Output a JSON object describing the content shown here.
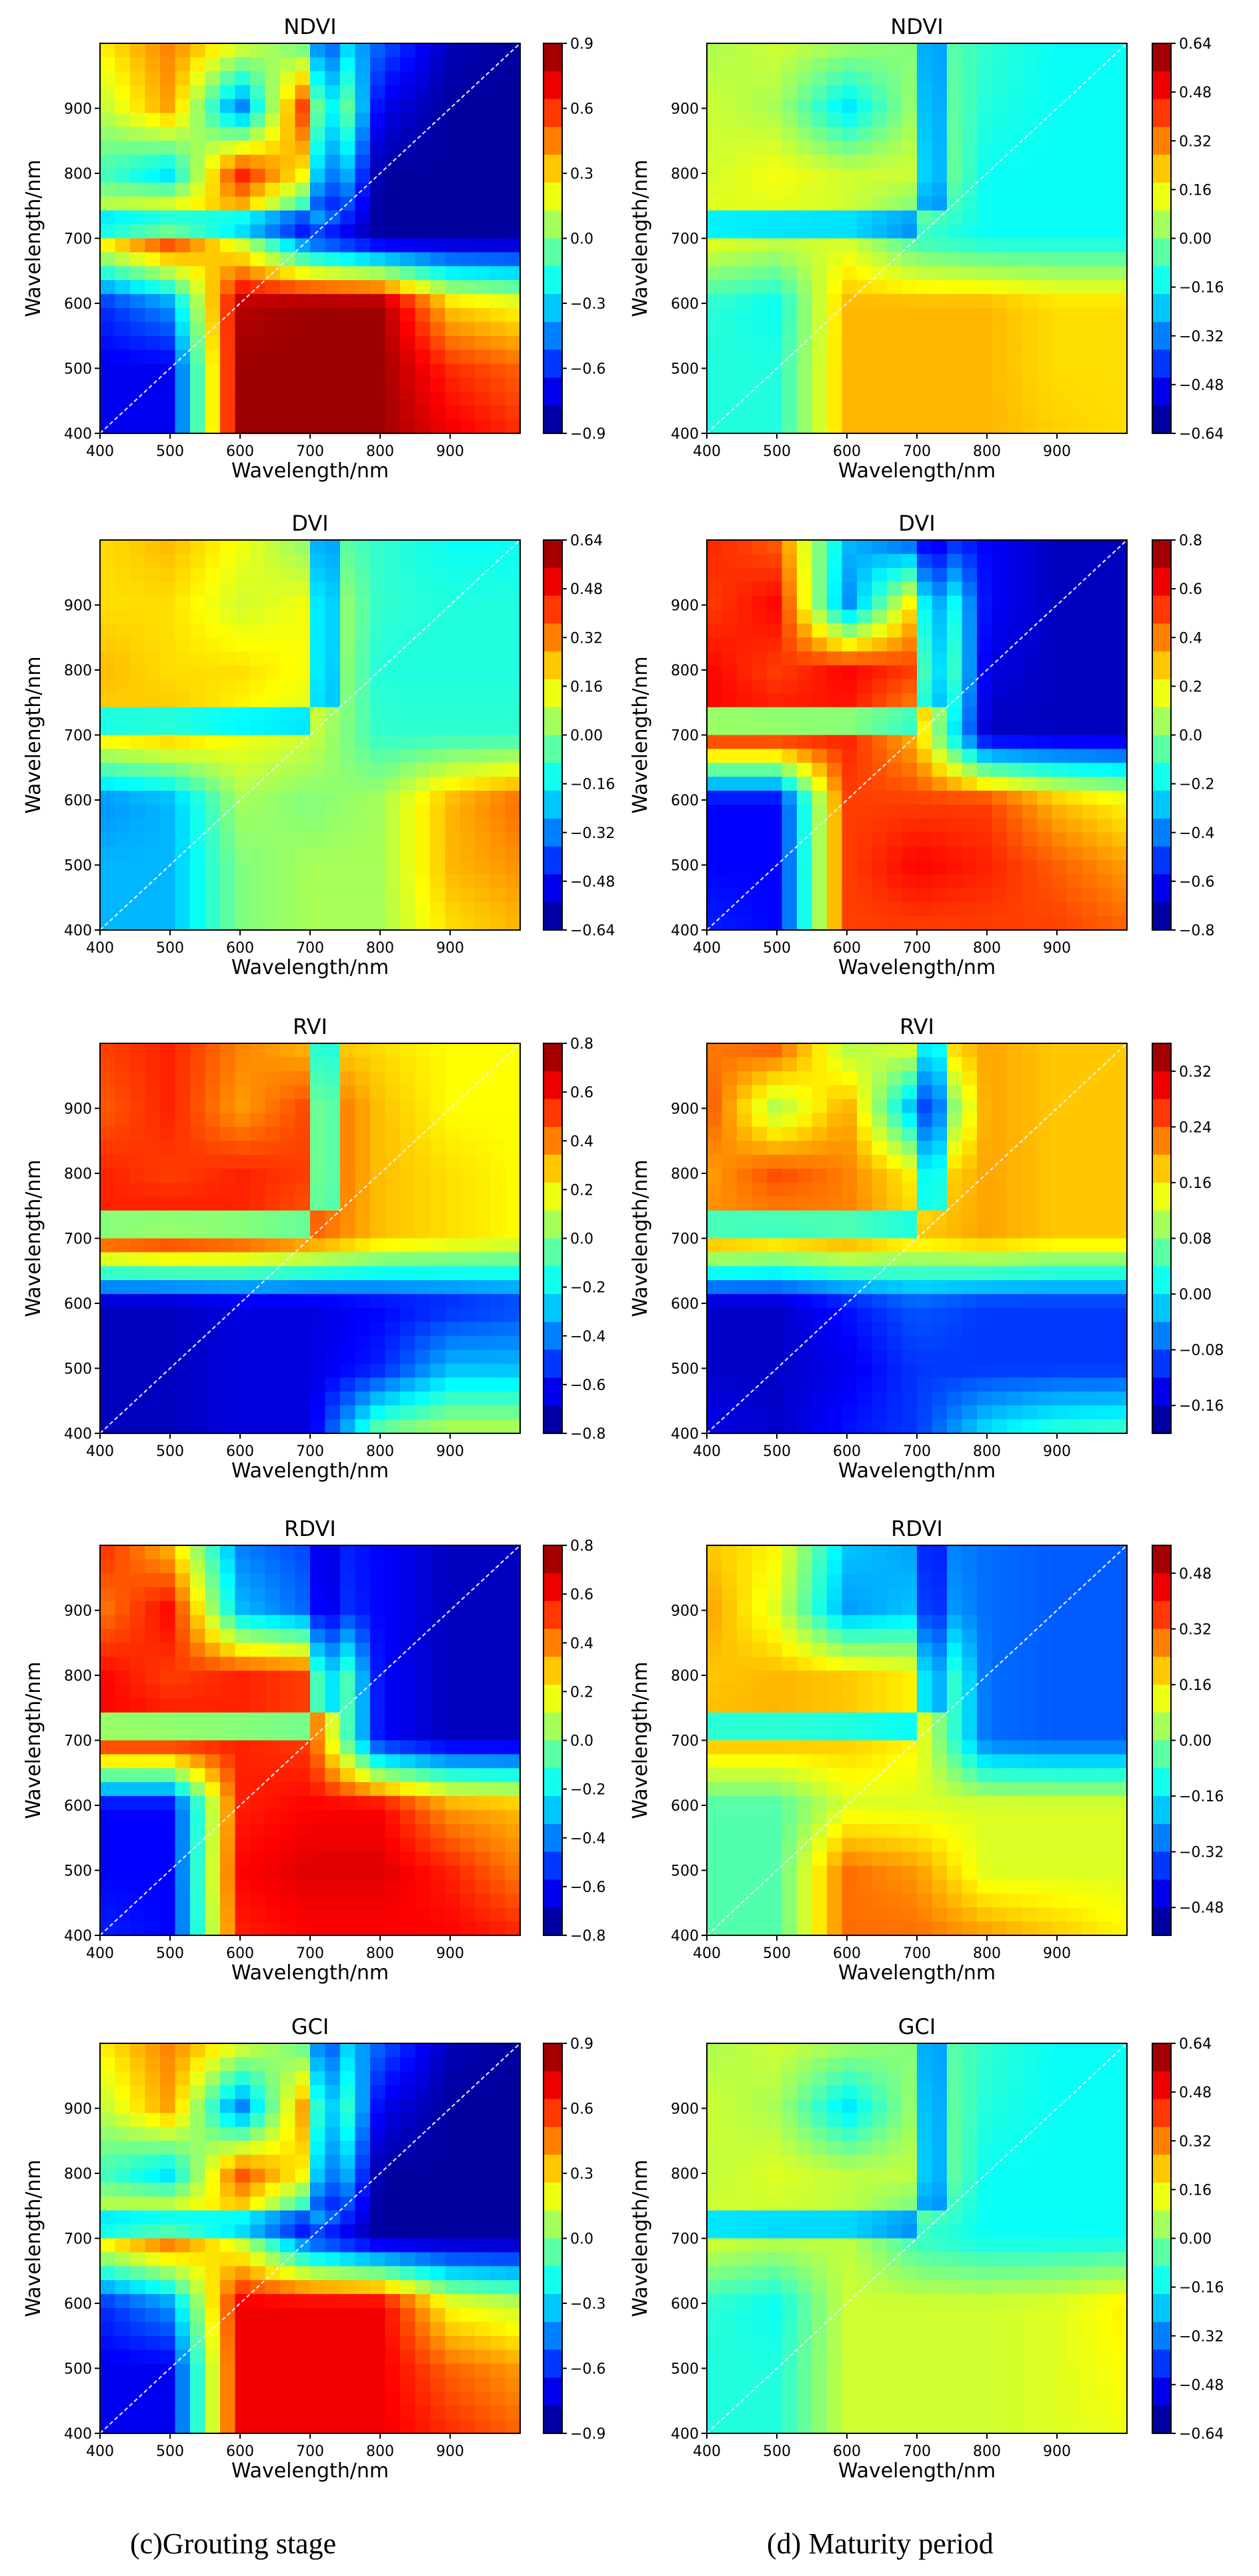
{
  "figure": {
    "captions": [
      "(c)Grouting stage",
      "(d) Maturity period"
    ]
  },
  "chart_data": [
    {
      "type": "heatmap",
      "title": "NDVI",
      "xlabel": "Wavelength/nm",
      "ylabel": "Wavelength/nm",
      "xlim": [
        400,
        1000
      ],
      "ylim": [
        400,
        1000
      ],
      "x_ticks": [
        "400",
        "500",
        "600",
        "700",
        "800",
        "900"
      ],
      "y_ticks": [
        "400",
        "500",
        "600",
        "700",
        "800",
        "900"
      ],
      "colorbar": {
        "min": -0.9,
        "max": 0.9,
        "ticks": [
          "0.9",
          "0.6",
          "0.3",
          "0.0",
          "−0.3",
          "−0.6",
          "−0.9"
        ]
      },
      "field": {
        "low_band": 0.55,
        "high_band": 0.85,
        "values": [
          [
            0.25,
            0.45,
            0.2,
            -0.1,
            -0.5,
            -0.8,
            -0.85
          ],
          [
            0.1,
            0.4,
            -0.5,
            0.7,
            -0.7,
            -0.85,
            -0.85
          ],
          [
            -0.1,
            -0.3,
            0.65,
            0.2,
            -0.85,
            -0.85,
            -0.85
          ],
          [
            0.3,
            0.65,
            0.1,
            -0.6,
            -0.85,
            -0.85,
            -0.85
          ],
          [
            -0.6,
            -0.4,
            0.8,
            0.85,
            0.85,
            0.3,
            0.2
          ],
          [
            -0.7,
            -0.7,
            0.85,
            0.85,
            0.85,
            0.6,
            0.5
          ],
          [
            -0.7,
            -0.7,
            0.85,
            0.85,
            0.85,
            0.7,
            0.6
          ]
        ]
      }
    },
    {
      "type": "heatmap",
      "title": "NDVI",
      "xlabel": "Wavelength/nm",
      "ylabel": "Wavelength/nm",
      "xlim": [
        400,
        1000
      ],
      "ylim": [
        400,
        1000
      ],
      "x_ticks": [
        "400",
        "500",
        "600",
        "700",
        "800",
        "900"
      ],
      "y_ticks": [
        "400",
        "500",
        "600",
        "700",
        "800",
        "900"
      ],
      "colorbar": {
        "min": -0.64,
        "max": 0.64,
        "ticks": [
          "0.64",
          "0.48",
          "0.32",
          "0.16",
          "0.00",
          "−0.16",
          "−0.32",
          "−0.48",
          "−0.64"
        ]
      },
      "field": {
        "low_band": 0.55,
        "high_band": 0.8,
        "values": [
          [
            0.05,
            0.1,
            0.05,
            0.0,
            -0.1,
            -0.15,
            -0.15
          ],
          [
            0.1,
            0.05,
            -0.2,
            0.05,
            -0.12,
            -0.15,
            -0.15
          ],
          [
            0.1,
            0.15,
            0.1,
            0.1,
            -0.15,
            -0.15,
            -0.15
          ],
          [
            0.15,
            0.1,
            0.1,
            -0.1,
            -0.15,
            -0.15,
            -0.15
          ],
          [
            -0.1,
            -0.15,
            0.25,
            0.25,
            0.25,
            0.2,
            0.2
          ],
          [
            -0.12,
            -0.12,
            0.25,
            0.25,
            0.25,
            0.2,
            0.2
          ],
          [
            -0.12,
            -0.12,
            0.25,
            0.25,
            0.25,
            0.22,
            0.2
          ]
        ]
      }
    },
    {
      "type": "heatmap",
      "title": "DVI",
      "xlabel": "Wavelength/nm",
      "ylabel": "Wavelength/nm",
      "xlim": [
        400,
        1000
      ],
      "ylim": [
        400,
        1000
      ],
      "x_ticks": [
        "400",
        "500",
        "600",
        "700",
        "800",
        "900"
      ],
      "y_ticks": [
        "400",
        "500",
        "600",
        "700",
        "800",
        "900"
      ],
      "colorbar": {
        "min": -0.64,
        "max": 0.64,
        "ticks": [
          "0.64",
          "0.48",
          "0.32",
          "0.16",
          "0.00",
          "−0.16",
          "−0.32",
          "−0.48",
          "−0.64"
        ]
      },
      "field": {
        "low_band": 0.55,
        "high_band": 0.85,
        "values": [
          [
            0.2,
            0.25,
            0.15,
            0.0,
            -0.1,
            -0.15,
            -0.15
          ],
          [
            0.2,
            0.2,
            0.1,
            0.15,
            -0.1,
            -0.12,
            -0.12
          ],
          [
            0.25,
            0.2,
            0.2,
            0.15,
            -0.12,
            -0.12,
            -0.12
          ],
          [
            0.2,
            0.25,
            0.15,
            0.1,
            -0.1,
            -0.1,
            -0.1
          ],
          [
            -0.3,
            -0.25,
            0.05,
            0.0,
            0.05,
            0.25,
            0.35
          ],
          [
            -0.25,
            -0.25,
            0.0,
            0.05,
            0.05,
            0.25,
            0.3
          ],
          [
            -0.25,
            -0.25,
            0.0,
            0.05,
            0.05,
            0.2,
            0.25
          ]
        ]
      }
    },
    {
      "type": "heatmap",
      "title": "DVI",
      "xlabel": "Wavelength/nm",
      "ylabel": "Wavelength/nm",
      "xlim": [
        400,
        1000
      ],
      "ylim": [
        400,
        1000
      ],
      "x_ticks": [
        "400",
        "500",
        "600",
        "700",
        "800",
        "900"
      ],
      "y_ticks": [
        "400",
        "500",
        "600",
        "700",
        "800",
        "900"
      ],
      "colorbar": {
        "min": -0.8,
        "max": 0.8,
        "ticks": [
          "0.8",
          "0.6",
          "0.4",
          "0.2",
          "0.0",
          "−0.2",
          "−0.4",
          "−0.6",
          "−0.8"
        ]
      },
      "field": {
        "low_band": 0.55,
        "high_band": 0.8,
        "values": [
          [
            0.55,
            0.45,
            -0.3,
            -0.5,
            -0.6,
            -0.7,
            -0.7
          ],
          [
            0.5,
            0.6,
            -0.4,
            0.3,
            -0.6,
            -0.7,
            -0.7
          ],
          [
            0.6,
            0.5,
            0.6,
            0.5,
            -0.65,
            -0.7,
            -0.7
          ],
          [
            0.6,
            0.6,
            0.55,
            0.3,
            -0.7,
            -0.7,
            -0.7
          ],
          [
            -0.6,
            -0.6,
            0.5,
            0.5,
            0.5,
            0.3,
            0.2
          ],
          [
            -0.6,
            -0.6,
            0.5,
            0.6,
            0.55,
            0.45,
            0.35
          ],
          [
            -0.55,
            -0.6,
            0.5,
            0.5,
            0.5,
            0.5,
            0.45
          ]
        ]
      }
    },
    {
      "type": "heatmap",
      "title": "RVI",
      "xlabel": "Wavelength/nm",
      "ylabel": "Wavelength/nm",
      "xlim": [
        400,
        1000
      ],
      "ylim": [
        400,
        1000
      ],
      "x_ticks": [
        "400",
        "500",
        "600",
        "700",
        "800",
        "900"
      ],
      "y_ticks": [
        "400",
        "500",
        "600",
        "700",
        "800",
        "900"
      ],
      "colorbar": {
        "min": -0.8,
        "max": 0.8,
        "ticks": [
          "0.8",
          "0.6",
          "0.4",
          "0.2",
          "0.0",
          "−0.2",
          "−0.4",
          "−0.6",
          "−0.8"
        ]
      },
      "field": {
        "low_band": 0.55,
        "high_band": 1.05,
        "values": [
          [
            0.5,
            0.55,
            0.4,
            0.3,
            0.25,
            0.2,
            0.2
          ],
          [
            0.45,
            0.55,
            0.35,
            0.5,
            0.3,
            0.2,
            0.2
          ],
          [
            0.55,
            0.5,
            0.55,
            0.5,
            0.3,
            0.25,
            0.2
          ],
          [
            0.55,
            0.6,
            0.55,
            0.45,
            0.3,
            0.25,
            0.2
          ],
          [
            -0.7,
            -0.7,
            -0.65,
            -0.65,
            -0.6,
            -0.55,
            -0.5
          ],
          [
            -0.7,
            -0.7,
            -0.65,
            -0.65,
            -0.55,
            -0.3,
            -0.3
          ],
          [
            -0.7,
            -0.7,
            -0.65,
            -0.65,
            0.0,
            0.1,
            0.1
          ]
        ]
      }
    },
    {
      "type": "heatmap",
      "title": "RVI",
      "xlabel": "Wavelength/nm",
      "ylabel": "Wavelength/nm",
      "xlim": [
        400,
        1000
      ],
      "ylim": [
        400,
        1000
      ],
      "x_ticks": [
        "400",
        "500",
        "600",
        "700",
        "800",
        "900"
      ],
      "y_ticks": [
        "400",
        "500",
        "600",
        "700",
        "800",
        "900"
      ],
      "colorbar": {
        "min": -0.2,
        "max": 0.36,
        "ticks": [
          "0.32",
          "0.24",
          "0.16",
          "0.08",
          "0.00",
          "−0.08",
          "−0.16"
        ]
      },
      "field": {
        "low_band": 0.55,
        "high_band": 1.05,
        "values": [
          [
            0.22,
            0.25,
            0.1,
            0.15,
            0.2,
            0.18,
            0.18
          ],
          [
            0.25,
            0.1,
            0.2,
            -0.05,
            0.2,
            0.18,
            0.18
          ],
          [
            0.2,
            0.25,
            0.22,
            0.15,
            0.2,
            0.18,
            0.18
          ],
          [
            0.22,
            0.2,
            0.22,
            0.18,
            0.2,
            0.18,
            0.18
          ],
          [
            -0.16,
            -0.16,
            -0.12,
            -0.08,
            -0.1,
            -0.1,
            -0.1
          ],
          [
            -0.16,
            -0.16,
            -0.14,
            -0.1,
            -0.1,
            -0.1,
            -0.1
          ],
          [
            -0.14,
            -0.16,
            -0.12,
            -0.1,
            0.0,
            0.04,
            0.05
          ]
        ]
      }
    },
    {
      "type": "heatmap",
      "title": "RDVI",
      "xlabel": "Wavelength/nm",
      "ylabel": "Wavelength/nm",
      "xlim": [
        400,
        1000
      ],
      "ylim": [
        400,
        1000
      ],
      "x_ticks": [
        "400",
        "500",
        "600",
        "700",
        "800",
        "900"
      ],
      "y_ticks": [
        "400",
        "500",
        "600",
        "700",
        "800",
        "900"
      ],
      "colorbar": {
        "min": -0.8,
        "max": 0.8,
        "ticks": [
          "0.8",
          "0.6",
          "0.4",
          "0.2",
          "0.0",
          "−0.2",
          "−0.4",
          "−0.6",
          "−0.8"
        ]
      },
      "field": {
        "low_band": 0.55,
        "high_band": 0.8,
        "values": [
          [
            0.55,
            0.3,
            -0.4,
            -0.5,
            -0.6,
            -0.7,
            -0.7
          ],
          [
            0.4,
            0.6,
            -0.3,
            -0.45,
            -0.6,
            -0.7,
            -0.7
          ],
          [
            0.6,
            0.5,
            0.55,
            0.5,
            -0.6,
            -0.7,
            -0.7
          ],
          [
            0.6,
            0.6,
            0.55,
            0.5,
            -0.6,
            -0.7,
            -0.7
          ],
          [
            -0.6,
            -0.6,
            0.55,
            0.6,
            0.6,
            0.35,
            0.3
          ],
          [
            -0.6,
            -0.6,
            0.6,
            0.65,
            0.65,
            0.55,
            0.4
          ],
          [
            -0.55,
            -0.6,
            0.55,
            0.6,
            0.6,
            0.6,
            0.55
          ]
        ]
      }
    },
    {
      "type": "heatmap",
      "title": "RDVI",
      "xlabel": "Wavelength/nm",
      "ylabel": "Wavelength/nm",
      "xlim": [
        400,
        1000
      ],
      "ylim": [
        400,
        1000
      ],
      "x_ticks": [
        "400",
        "500",
        "600",
        "700",
        "800",
        "900"
      ],
      "y_ticks": [
        "400",
        "500",
        "600",
        "700",
        "800",
        "900"
      ],
      "colorbar": {
        "min": -0.56,
        "max": 0.56,
        "ticks": [
          "0.48",
          "0.32",
          "0.16",
          "0.00",
          "−0.16",
          "−0.32",
          "−0.48"
        ]
      },
      "field": {
        "low_band": 0.55,
        "high_band": 0.8,
        "values": [
          [
            0.2,
            0.15,
            -0.2,
            -0.25,
            -0.3,
            -0.32,
            -0.32
          ],
          [
            0.25,
            0.1,
            -0.25,
            -0.2,
            -0.3,
            -0.32,
            -0.32
          ],
          [
            0.2,
            0.22,
            0.2,
            0.15,
            -0.3,
            -0.32,
            -0.32
          ],
          [
            0.22,
            0.22,
            0.2,
            0.15,
            -0.3,
            -0.32,
            -0.32
          ],
          [
            -0.05,
            -0.05,
            0.1,
            0.1,
            0.1,
            0.1,
            0.1
          ],
          [
            -0.05,
            -0.05,
            0.3,
            0.25,
            0.1,
            0.1,
            0.1
          ],
          [
            -0.05,
            -0.05,
            0.3,
            0.3,
            0.25,
            0.2,
            0.15
          ]
        ]
      }
    },
    {
      "type": "heatmap",
      "title": "GCI",
      "xlabel": "Wavelength/nm",
      "ylabel": "Wavelength/nm",
      "xlim": [
        400,
        1000
      ],
      "ylim": [
        400,
        1000
      ],
      "x_ticks": [
        "400",
        "500",
        "600",
        "700",
        "800",
        "900"
      ],
      "y_ticks": [
        "400",
        "500",
        "600",
        "700",
        "800",
        "900"
      ],
      "colorbar": {
        "min": -0.9,
        "max": 0.9,
        "ticks": [
          "0.9",
          "0.6",
          "0.3",
          "0.0",
          "−0.3",
          "−0.6",
          "−0.9"
        ]
      },
      "field": {
        "low_band": 0.55,
        "high_band": 0.85,
        "values": [
          [
            0.25,
            0.45,
            0.2,
            -0.1,
            -0.5,
            -0.8,
            -0.85
          ],
          [
            0.1,
            0.4,
            -0.5,
            0.5,
            -0.7,
            -0.85,
            -0.85
          ],
          [
            -0.1,
            -0.3,
            0.55,
            0.2,
            -0.85,
            -0.85,
            -0.85
          ],
          [
            0.3,
            0.55,
            0.1,
            -0.6,
            -0.85,
            -0.85,
            -0.85
          ],
          [
            -0.6,
            -0.4,
            0.7,
            0.7,
            0.7,
            0.2,
            0.1
          ],
          [
            -0.7,
            -0.7,
            0.7,
            0.7,
            0.7,
            0.5,
            0.4
          ],
          [
            -0.7,
            -0.7,
            0.7,
            0.7,
            0.7,
            0.6,
            0.5
          ]
        ]
      }
    },
    {
      "type": "heatmap",
      "title": "GCI",
      "xlabel": "Wavelength/nm",
      "ylabel": "Wavelength/nm",
      "xlim": [
        400,
        1000
      ],
      "ylim": [
        400,
        1000
      ],
      "x_ticks": [
        "400",
        "500",
        "600",
        "700",
        "800",
        "900"
      ],
      "y_ticks": [
        "400",
        "500",
        "600",
        "700",
        "800",
        "900"
      ],
      "colorbar": {
        "min": -0.64,
        "max": 0.64,
        "ticks": [
          "0.64",
          "0.48",
          "0.32",
          "0.16",
          "0.00",
          "−0.16",
          "−0.32",
          "−0.48",
          "−0.64"
        ]
      },
      "field": {
        "low_band": 0.55,
        "high_band": 0.8,
        "values": [
          [
            0.05,
            0.1,
            0.05,
            0.0,
            -0.1,
            -0.15,
            -0.15
          ],
          [
            0.1,
            0.05,
            -0.2,
            0.05,
            -0.12,
            -0.15,
            -0.15
          ],
          [
            0.08,
            0.12,
            0.08,
            0.08,
            -0.15,
            -0.15,
            -0.15
          ],
          [
            0.12,
            0.08,
            0.08,
            -0.1,
            -0.15,
            -0.15,
            -0.15
          ],
          [
            -0.1,
            -0.15,
            0.1,
            0.1,
            0.1,
            0.12,
            0.18
          ],
          [
            -0.12,
            -0.12,
            0.1,
            0.1,
            0.1,
            0.12,
            0.16
          ],
          [
            -0.12,
            -0.12,
            0.1,
            0.1,
            0.1,
            0.12,
            0.14
          ]
        ]
      }
    }
  ]
}
